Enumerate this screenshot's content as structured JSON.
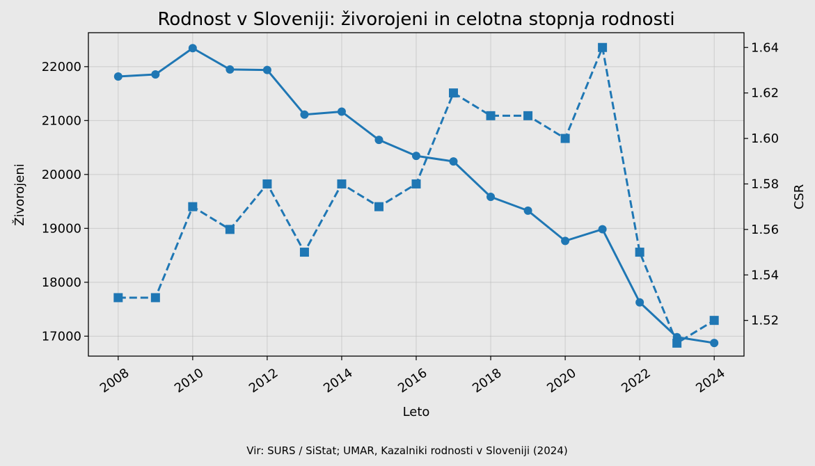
{
  "chart_data": {
    "type": "line",
    "title": "Rodnost v Sloveniji: živorojeni in celotna stopnja rodnosti",
    "xlabel": "Leto",
    "ylabel_left": "Živorojeni",
    "ylabel_right": "CSR",
    "source": "Vir: SURS / SiStat; UMAR, Kazalniki rodnosti v Sloveniji (2024)",
    "x": [
      2008,
      2009,
      2010,
      2011,
      2012,
      2013,
      2014,
      2015,
      2016,
      2017,
      2018,
      2019,
      2020,
      2021,
      2022,
      2023,
      2024
    ],
    "x_ticks": [
      "2008",
      "2010",
      "2012",
      "2014",
      "2016",
      "2018",
      "2020",
      "2022",
      "2024"
    ],
    "y_left_ticks": [
      "17000",
      "18000",
      "19000",
      "20000",
      "21000",
      "22000"
    ],
    "y_right_ticks": [
      "1.52",
      "1.54",
      "1.56",
      "1.58",
      "1.60",
      "1.62",
      "1.64"
    ],
    "xlim": [
      2007.2,
      2024.8
    ],
    "ylim_left": [
      16630,
      22630
    ],
    "ylim_right": [
      1.5043,
      1.6465
    ],
    "grid": true,
    "color": "#1f77b4",
    "series": [
      {
        "axis": "left",
        "style": "solid",
        "marker": "circle",
        "values": [
          21817,
          21856,
          22343,
          21947,
          21938,
          21111,
          21165,
          20641,
          20345,
          20241,
          19585,
          19328,
          18767,
          18984,
          17627,
          16982,
          16874
        ]
      },
      {
        "axis": "right",
        "style": "dashed",
        "marker": "square",
        "values": [
          1.53,
          1.53,
          1.57,
          1.56,
          1.58,
          1.55,
          1.58,
          1.57,
          1.58,
          1.62,
          1.61,
          1.61,
          1.6,
          1.64,
          1.55,
          1.51,
          1.52
        ]
      }
    ]
  }
}
